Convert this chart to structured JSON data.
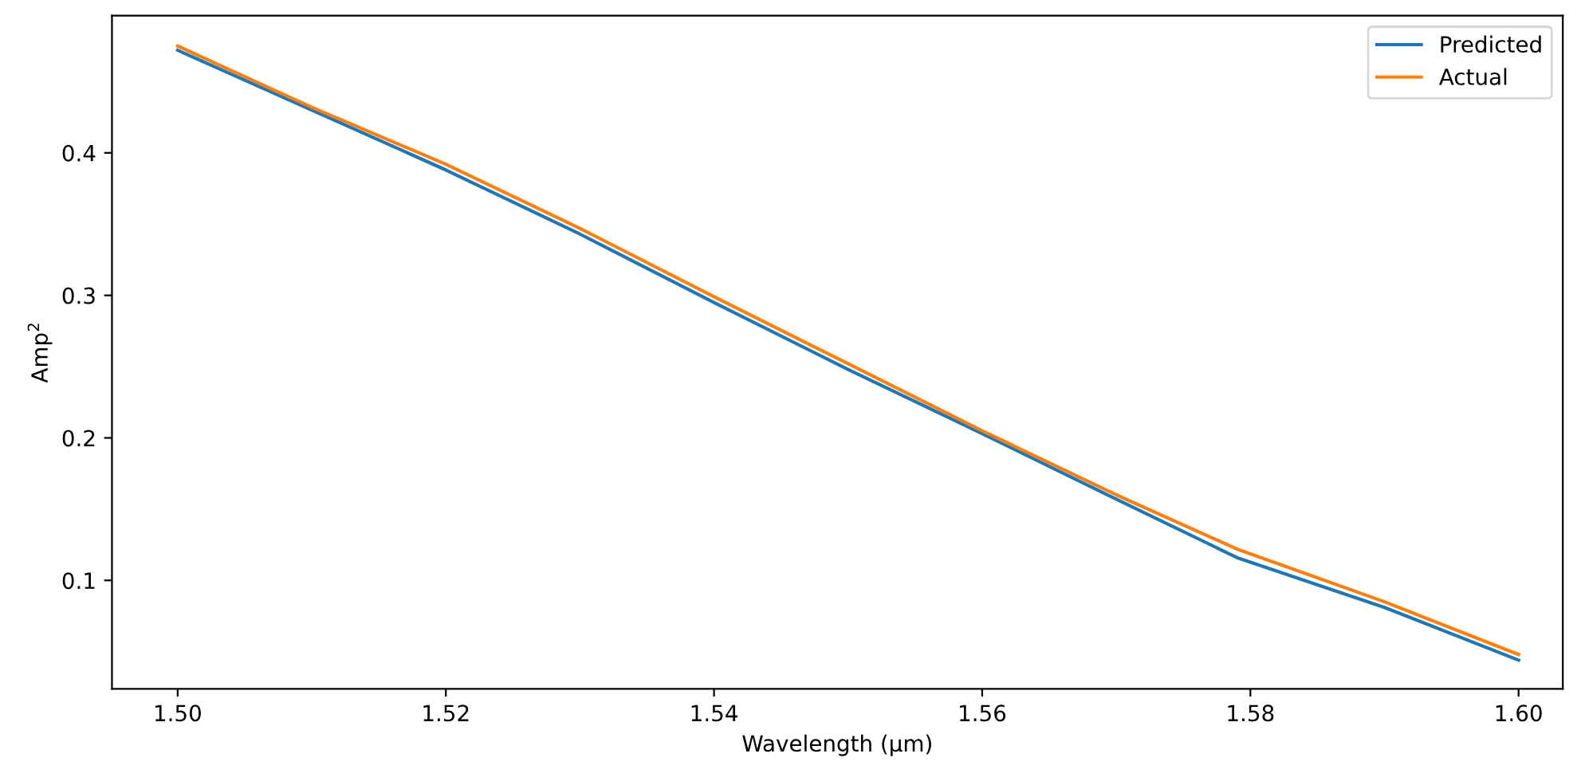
{
  "chart_data": {
    "type": "line",
    "xlabel": "Wavelength (μm)",
    "ylabel": "Amp$^{2}$",
    "x": [
      1.5,
      1.51,
      1.52,
      1.53,
      1.54,
      1.55,
      1.56,
      1.57,
      1.579,
      1.59,
      1.6
    ],
    "series": [
      {
        "name": "Predicted",
        "color": "#1f77b4",
        "values": [
          0.472,
          0.43,
          0.388,
          0.343,
          0.295,
          0.248,
          0.203,
          0.157,
          0.116,
          0.081,
          0.044
        ]
      },
      {
        "name": "Actual",
        "color": "#ff7f0e",
        "values": [
          0.475,
          0.432,
          0.392,
          0.347,
          0.299,
          0.252,
          0.205,
          0.16,
          0.122,
          0.085,
          0.048
        ]
      }
    ],
    "xlim": [
      1.4951,
      1.6033
    ],
    "ylim": [
      0.0239,
      0.4963
    ],
    "xticks": [
      {
        "value": 1.5,
        "label": "1.50"
      },
      {
        "value": 1.52,
        "label": "1.52"
      },
      {
        "value": 1.54,
        "label": "1.54"
      },
      {
        "value": 1.56,
        "label": "1.56"
      },
      {
        "value": 1.58,
        "label": "1.58"
      },
      {
        "value": 1.6,
        "label": "1.60"
      }
    ],
    "yticks": [
      0.1,
      0.2,
      0.3,
      0.4
    ],
    "legend": "top right",
    "grid": false,
    "line_style": "solid",
    "marker": "none"
  }
}
